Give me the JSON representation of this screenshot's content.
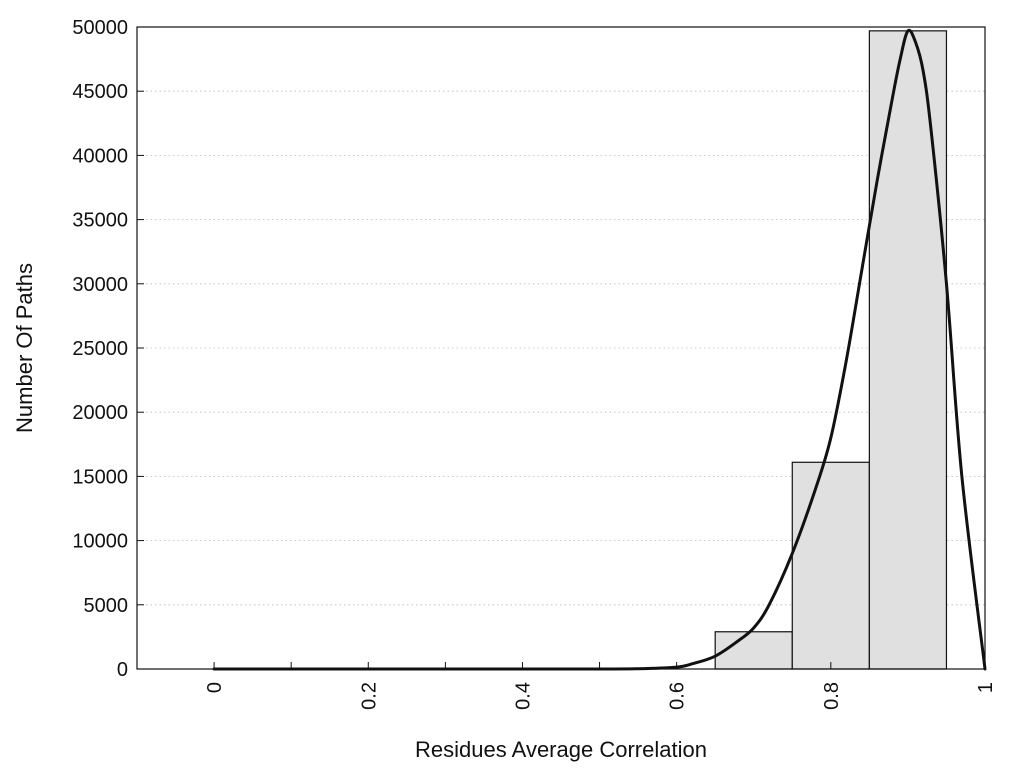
{
  "chart_data": {
    "type": "bar",
    "title": "",
    "xlabel": "Residues Average Correlation",
    "ylabel": "Number Of Paths",
    "xlim": [
      -0.1,
      1.0
    ],
    "ylim": [
      0,
      50000
    ],
    "x_ticks": [
      0,
      0.2,
      0.4,
      0.6,
      0.8,
      1
    ],
    "x_tick_labels": [
      "0",
      "0.2",
      "0.4",
      "0.6",
      "0.8",
      "1"
    ],
    "x_minor_ticks": [
      0.1,
      0.3,
      0.5
    ],
    "y_ticks": [
      0,
      5000,
      10000,
      15000,
      20000,
      25000,
      30000,
      35000,
      40000,
      45000,
      50000
    ],
    "y_tick_labels": [
      "0",
      "5000",
      "10000",
      "15000",
      "20000",
      "25000",
      "30000",
      "35000",
      "40000",
      "45000",
      "50000"
    ],
    "grid": "horizontal-dotted",
    "legend": "none",
    "bars": [
      {
        "x_start": 0.65,
        "x_end": 0.75,
        "value": 2900
      },
      {
        "x_start": 0.75,
        "x_end": 0.85,
        "value": 16100
      },
      {
        "x_start": 0.85,
        "x_end": 0.95,
        "value": 49700
      }
    ],
    "curve": {
      "x": [
        0,
        0.1,
        0.2,
        0.3,
        0.4,
        0.5,
        0.55,
        0.6,
        0.62,
        0.65,
        0.68,
        0.7,
        0.72,
        0.75,
        0.78,
        0.8,
        0.82,
        0.84,
        0.86,
        0.88,
        0.89,
        0.9,
        0.91,
        0.92,
        0.93,
        0.95,
        0.97,
        1.0
      ],
      "y": [
        0,
        0,
        0,
        0,
        0,
        0,
        20,
        150,
        400,
        1000,
        2200,
        3200,
        5000,
        9000,
        14000,
        18000,
        24000,
        31000,
        38000,
        44500,
        47500,
        49700,
        48800,
        46500,
        42000,
        30000,
        15000,
        0
      ]
    },
    "colors": {
      "bar_fill": "#e0e0e0",
      "bar_stroke": "#111111",
      "curve": "#111111",
      "grid": "#bbbbbb",
      "axis": "#111111"
    }
  }
}
